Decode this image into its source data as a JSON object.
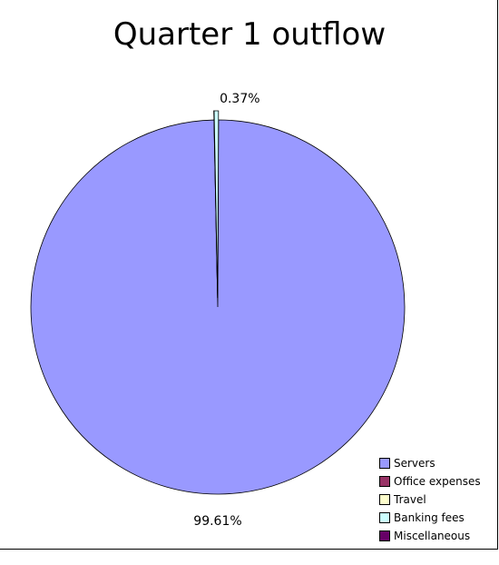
{
  "chart_data": {
    "type": "pie",
    "title": "Quarter 1 outflow",
    "slices": [
      {
        "label": "Servers",
        "percent": 99.61,
        "color": "#9999ff",
        "data_label": "99.61%"
      },
      {
        "label": "Office expenses",
        "percent": 0.01,
        "color": "#993366",
        "data_label": ""
      },
      {
        "label": "Travel",
        "percent": 0.01,
        "color": "#ffffcc",
        "data_label": ""
      },
      {
        "label": "Banking fees",
        "percent": 0.37,
        "color": "#ccffff",
        "data_label": "0.37%"
      },
      {
        "label": "Miscellaneous",
        "percent": 0.0,
        "color": "#660066",
        "data_label": ""
      }
    ],
    "legend_position": "bottom-right"
  }
}
